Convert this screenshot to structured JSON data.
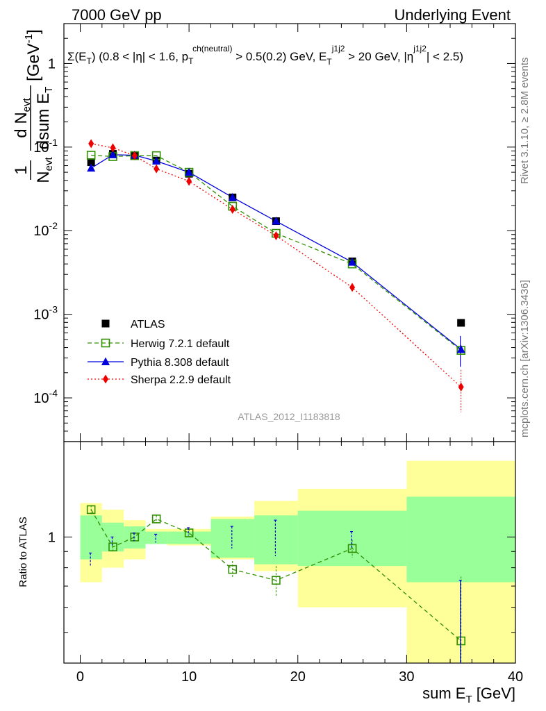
{
  "header": {
    "left": "7000 GeV pp",
    "right": "Underlying Event"
  },
  "side_labels": {
    "rivet": "Rivet 3.1.10, ≥ 2.8M events",
    "mcplots": "mcplots.cern.ch [arXiv:1306.3436]"
  },
  "colors": {
    "atlas": "#000000",
    "herwig": "#2f8f00",
    "pythia": "#0000dd",
    "sherpa": "#ee0000",
    "band_inner": "#99ff99",
    "band_outer": "#ffff99"
  },
  "chart_data": [
    {
      "type": "scatter",
      "panel": "main",
      "title": "Σ(E_T) (0.8 < |η| < 1.6, p_T^ch(neutral) > 0.5(0.2) GeV, E_T^j1j2 > 20 GeV, |η^j1j2| < 2.5)",
      "ylabel": "1/N_evt dN_evt/dsum E_T [GeV^-1]",
      "watermark": "ATLAS_2012_I1183818",
      "xlim": [
        -1.5,
        40
      ],
      "ylim": [
        3e-05,
        3
      ],
      "y_scale": "log",
      "y_tick_labels": [
        "1",
        "10^-1",
        "10^-2",
        "10^-3",
        "10^-4"
      ],
      "legend_position": "bottom-left",
      "x": [
        1,
        3,
        5,
        7,
        10,
        14,
        18,
        25,
        35
      ],
      "x_bin_edges": [
        0,
        2,
        4,
        6,
        8,
        12,
        16,
        20,
        30,
        40
      ],
      "series": [
        {
          "name": "ATLAS",
          "values": [
            0.066,
            0.083,
            0.08,
            0.069,
            0.048,
            0.025,
            0.013,
            0.0043,
            0.00079
          ]
        },
        {
          "name": "Herwig 7.2.1 default",
          "values": [
            0.08,
            0.077,
            0.079,
            0.079,
            0.05,
            0.0196,
            0.0093,
            0.004,
            0.00037
          ]
        },
        {
          "name": "Pythia 8.308 default",
          "values": [
            0.056,
            0.081,
            0.08,
            0.068,
            0.05,
            0.025,
            0.013,
            0.0042,
            0.00038
          ]
        },
        {
          "name": "Sherpa 2.2.9 default",
          "values": [
            0.11,
            0.098,
            0.079,
            0.055,
            0.039,
            0.018,
            0.0087,
            0.0021,
            0.000135
          ]
        }
      ]
    },
    {
      "type": "scatter",
      "panel": "ratio",
      "ylabel": "Ratio to ATLAS",
      "xlabel": "sum E_T [GeV]",
      "xlim": [
        -1.5,
        40
      ],
      "ylim": [
        0.4,
        2.0
      ],
      "y_scale": "log",
      "y_tick_labels": [
        "1"
      ],
      "x_tick_labels": [
        "0",
        "10",
        "20",
        "30",
        "40"
      ],
      "x": [
        1,
        3,
        5,
        7,
        10,
        14,
        18,
        25,
        35
      ],
      "x_bin_edges": [
        0,
        2,
        4,
        6,
        8,
        12,
        16,
        20,
        30,
        40
      ],
      "band_inner": [
        [
          0.85,
          1.17
        ],
        [
          0.9,
          1.11
        ],
        [
          0.92,
          1.08
        ],
        [
          0.95,
          1.04
        ],
        [
          0.95,
          1.04
        ],
        [
          0.86,
          1.14
        ],
        [
          0.82,
          1.17
        ],
        [
          0.81,
          1.21
        ],
        [
          0.72,
          1.34
        ]
      ],
      "band_outer": [
        [
          0.72,
          1.28
        ],
        [
          0.8,
          1.22
        ],
        [
          0.85,
          1.13
        ],
        [
          0.96,
          1.06
        ],
        [
          0.94,
          1.06
        ],
        [
          0.85,
          1.16
        ],
        [
          0.78,
          1.3
        ],
        [
          0.6,
          1.42
        ],
        [
          0.4,
          1.74
        ]
      ],
      "series": [
        {
          "name": "Herwig 7.2.1 default",
          "values": [
            1.22,
            0.93,
            1.0,
            1.14,
            1.03,
            0.79,
            0.73,
            0.92,
            0.47
          ],
          "err_lo": [
            0.04,
            0.03,
            0.03,
            0.03,
            0.03,
            0.05,
            0.08,
            0.06,
            0.28
          ],
          "err_hi": [
            0.04,
            0.03,
            0.03,
            0.03,
            0.03,
            0.05,
            0.08,
            0.06,
            0.28
          ]
        },
        {
          "name": "Pythia 8.308 default",
          "values": [
            0.85,
            0.97,
            1.0,
            0.99,
            1.04,
            1.0,
            1.0,
            0.98,
            0.48
          ],
          "err_lo": [
            0.04,
            0.03,
            0.03,
            0.03,
            0.03,
            0.08,
            0.13,
            0.06,
            0.25
          ],
          "err_hi": [
            0.04,
            0.03,
            0.03,
            0.03,
            0.03,
            0.08,
            0.13,
            0.06,
            0.25
          ]
        }
      ]
    }
  ]
}
